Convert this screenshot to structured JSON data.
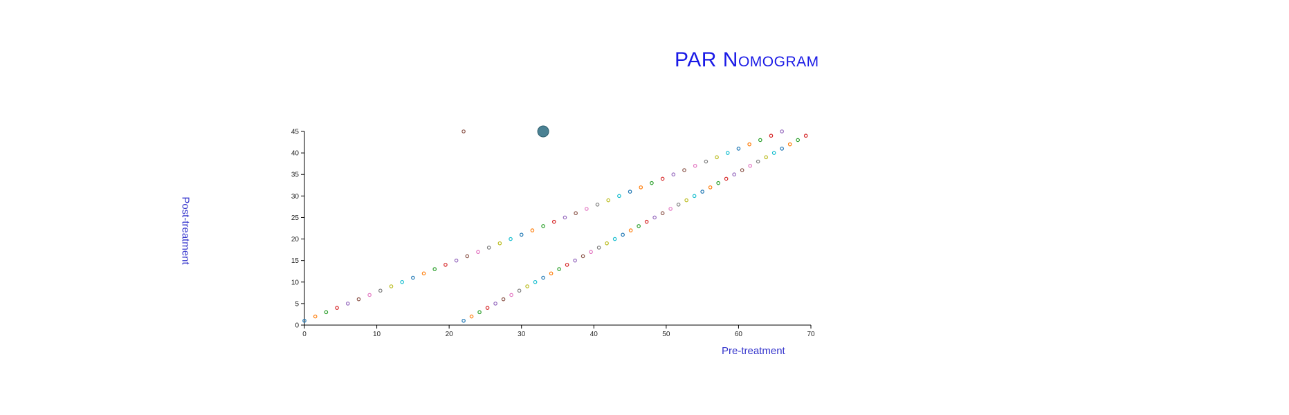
{
  "page": {
    "title": "PAR Nomogram"
  },
  "chart_data": {
    "type": "scatter",
    "title": "PAR Nomogram",
    "xlabel": "Pre-treatment",
    "ylabel": "Post-treatment",
    "xlim": [
      0,
      70
    ],
    "ylim": [
      0,
      45
    ],
    "x_ticks": [
      "0",
      "10",
      "20",
      "30",
      "40",
      "50",
      "60",
      "70"
    ],
    "y_ticks": [
      "0",
      "5",
      "10",
      "15",
      "20",
      "25",
      "30",
      "35",
      "40",
      "45"
    ],
    "grid": false,
    "point_colors": [
      "#1f77b4",
      "#ff7f0e",
      "#2ca02c",
      "#d62728",
      "#9467bd",
      "#8c564b",
      "#e377c2",
      "#7f7f7f",
      "#bcbd22",
      "#17becf"
    ],
    "series": [
      {
        "x": [
          0,
          1.5,
          3,
          4.5,
          6,
          7.5,
          9,
          10.5,
          12,
          13.5,
          15,
          16.5,
          18,
          19.5,
          21,
          22.5,
          24,
          25.5,
          27,
          28.5,
          30,
          31.5,
          33,
          34.5,
          36,
          37.5,
          39,
          40.5,
          42,
          43.5,
          45,
          46.5,
          48,
          49.5,
          51,
          52.5,
          54,
          55.5,
          57,
          58.5,
          60,
          61.5,
          63,
          64.5,
          66
        ],
        "y": [
          1,
          2,
          3,
          4,
          5,
          6,
          7,
          8,
          9,
          10,
          11,
          12,
          13,
          14,
          15,
          16,
          17,
          18,
          19,
          20,
          21,
          22,
          23,
          24,
          25,
          26,
          27,
          28,
          29,
          30,
          31,
          32,
          33,
          34,
          35,
          36,
          37,
          38,
          39,
          40,
          41,
          42,
          43,
          44,
          45
        ]
      },
      {
        "x": [
          22,
          23.1,
          24.2,
          25.3,
          26.4,
          27.5,
          28.6,
          29.7,
          30.8,
          31.9,
          33,
          34.1,
          35.2,
          36.3,
          37.4,
          38.5,
          39.6,
          40.7,
          41.8,
          42.9,
          44,
          45.1,
          46.2,
          47.3,
          48.4,
          49.5,
          50.6,
          51.7,
          52.8,
          53.9,
          55,
          56.1,
          57.2,
          58.3,
          59.4,
          60.5,
          61.6,
          62.7,
          63.8,
          64.9,
          66,
          67.1,
          68.2,
          69.3
        ],
        "y": [
          1,
          2,
          3,
          4,
          5,
          6,
          7,
          8,
          9,
          10,
          11,
          12,
          13,
          14,
          15,
          16,
          17,
          18,
          19,
          20,
          21,
          22,
          23,
          24,
          25,
          26,
          27,
          28,
          29,
          30,
          31,
          32,
          33,
          34,
          35,
          36,
          37,
          38,
          39,
          40,
          41,
          42,
          43,
          44
        ]
      }
    ],
    "markers": [
      {
        "x": 22,
        "y": 45,
        "color": "#8c564b",
        "kind": "small-circle"
      },
      {
        "x": 33,
        "y": 45,
        "color": "#4a8193",
        "kind": "large-filled-circle"
      }
    ]
  }
}
